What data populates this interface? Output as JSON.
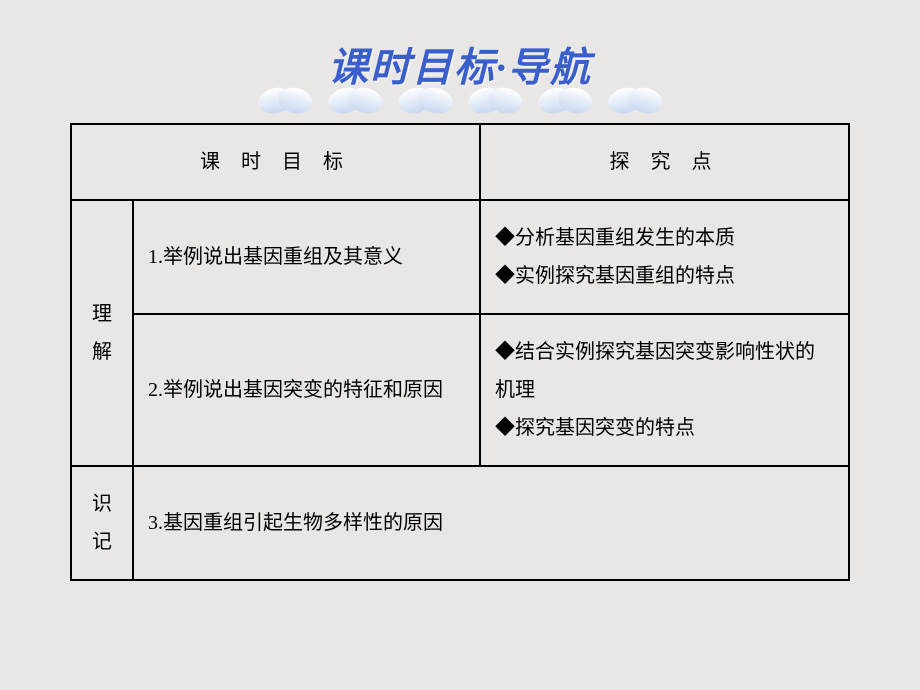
{
  "title": "课时目标·导航",
  "colors": {
    "background": "#e8e7e5",
    "title_color": "#3a5fcc",
    "border_color": "#000000",
    "text_color": "#000000",
    "cloud_top": "#ffffff",
    "cloud_bottom": "#c8d8f0"
  },
  "typography": {
    "title_fontsize": 40,
    "title_weight": "bold",
    "title_style": "italic",
    "cell_fontsize": 20,
    "font_family": "SimSun"
  },
  "table": {
    "headers": {
      "col1": "课 时 目 标",
      "col2": "探 究 点"
    },
    "row_labels": {
      "understand": "理\n解",
      "memorize": "识记"
    },
    "rows": [
      {
        "goal": "1.举例说出基因重组及其意义",
        "points": "◆分析基因重组发生的本质\n◆实例探究基因重组的特点"
      },
      {
        "goal": "2.举例说出基因突变的特征和原因",
        "points": "◆结合实例探究基因突变影响性状的机理\n◆探究基因突变的特点"
      },
      {
        "goal": "3.基因重组引起生物多样性的原因"
      }
    ]
  }
}
